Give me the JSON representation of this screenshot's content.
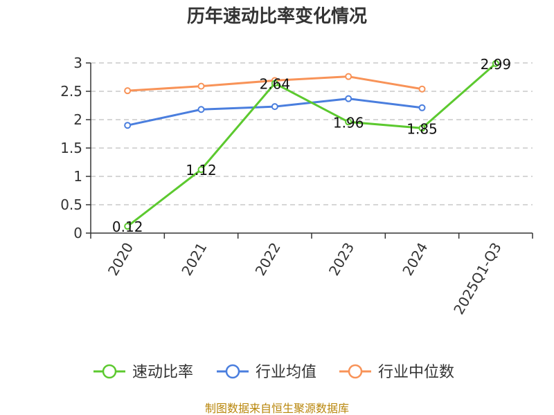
{
  "chart_data": {
    "type": "line",
    "title": "历年速动比率变化情况",
    "categories": [
      "2020",
      "2021",
      "2022",
      "2023",
      "2024",
      "2025Q1-Q3"
    ],
    "series": [
      {
        "name": "速动比率",
        "color": "#5cc92f",
        "values": [
          0.12,
          1.12,
          2.64,
          1.96,
          1.85,
          2.99
        ],
        "data_labels": [
          "0.12",
          "1.12",
          "2.64",
          "1.96",
          "1.85",
          "2.99"
        ]
      },
      {
        "name": "行业均值",
        "color": "#4a7ede",
        "values": [
          1.9,
          2.18,
          2.23,
          2.37,
          2.21,
          null
        ]
      },
      {
        "name": "行业中位数",
        "color": "#f89358",
        "values": [
          2.51,
          2.59,
          2.69,
          2.76,
          2.54,
          null
        ]
      }
    ],
    "ylim": [
      0,
      3
    ],
    "yticks": [
      "0",
      "0.5",
      "1",
      "1.5",
      "2",
      "2.5",
      "3"
    ],
    "grid": true,
    "legend_position": "bottom"
  },
  "source": "制图数据来自恒生聚源数据库"
}
